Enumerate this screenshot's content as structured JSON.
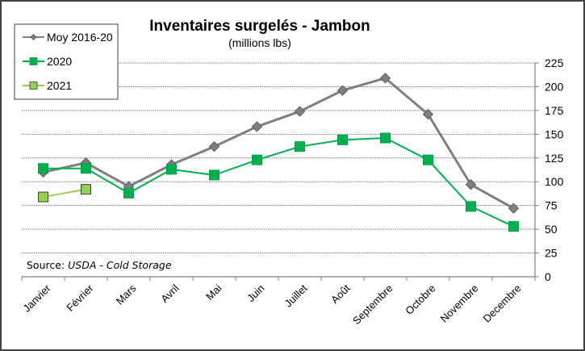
{
  "chart_data": {
    "type": "line",
    "title": "Inventaires surgelés - Jambon",
    "subtitle": "(millions lbs)",
    "xlabel": "",
    "ylabel": "",
    "ylim": [
      0,
      225
    ],
    "yticks": [
      0,
      25,
      50,
      75,
      100,
      125,
      150,
      175,
      200,
      225
    ],
    "y_axis_side": "right",
    "grid": true,
    "legend_position": "top-left",
    "categories": [
      "Janvier",
      "Février",
      "Mars",
      "Avril",
      "Mai",
      "Juin",
      "Juillet",
      "Août",
      "Septembre",
      "Octobre",
      "Novembre",
      "Decembre"
    ],
    "series": [
      {
        "name": "Moy 2016-20",
        "color": "#7f7f7f",
        "marker": "diamond",
        "values": [
          110,
          120,
          95,
          118,
          137,
          158,
          174,
          196,
          209,
          171,
          97,
          72
        ]
      },
      {
        "name": "2020",
        "color": "#00b050",
        "marker": "square",
        "values": [
          114,
          114,
          88,
          113,
          107,
          123,
          137,
          144,
          146,
          123,
          74,
          53
        ]
      },
      {
        "name": "2021",
        "color": "#92d050",
        "marker": "square",
        "values": [
          84,
          92,
          null,
          null,
          null,
          null,
          null,
          null,
          null,
          null,
          null,
          null
        ]
      }
    ],
    "annotations": [
      {
        "text_prefix": "Source: ",
        "text_italic": "USDA - Cold Storage"
      }
    ]
  }
}
